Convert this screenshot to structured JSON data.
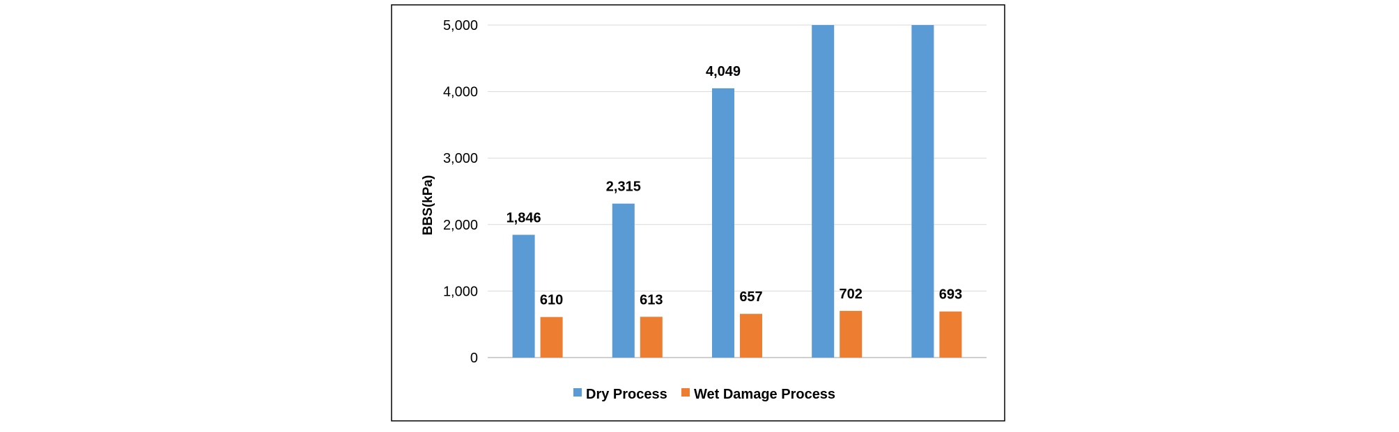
{
  "chart_data": {
    "type": "bar",
    "title": "",
    "xlabel": "",
    "ylabel": "BBS(kPa)",
    "ylim": [
      0,
      5000
    ],
    "yticks": [
      "0",
      "1,000",
      "2,000",
      "3,000",
      "4,000",
      "5,000"
    ],
    "ytick_values": [
      0,
      1000,
      2000,
      3000,
      4000,
      5000
    ],
    "categories": [
      "",
      "",
      "",
      "",
      ""
    ],
    "grid": true,
    "legend_position": "bottom",
    "series": [
      {
        "name": "Dry Process",
        "color": "#5b9bd5",
        "values": [
          1846,
          2315,
          4049,
          5000,
          5000
        ],
        "data_labels": [
          "1,846",
          "2,315",
          "4,049",
          "",
          ""
        ]
      },
      {
        "name": "Wet Damage Process",
        "color": "#ed7d31",
        "values": [
          610,
          613,
          657,
          702,
          693
        ],
        "data_labels": [
          "610",
          "613",
          "657",
          "702",
          "693"
        ]
      }
    ]
  }
}
